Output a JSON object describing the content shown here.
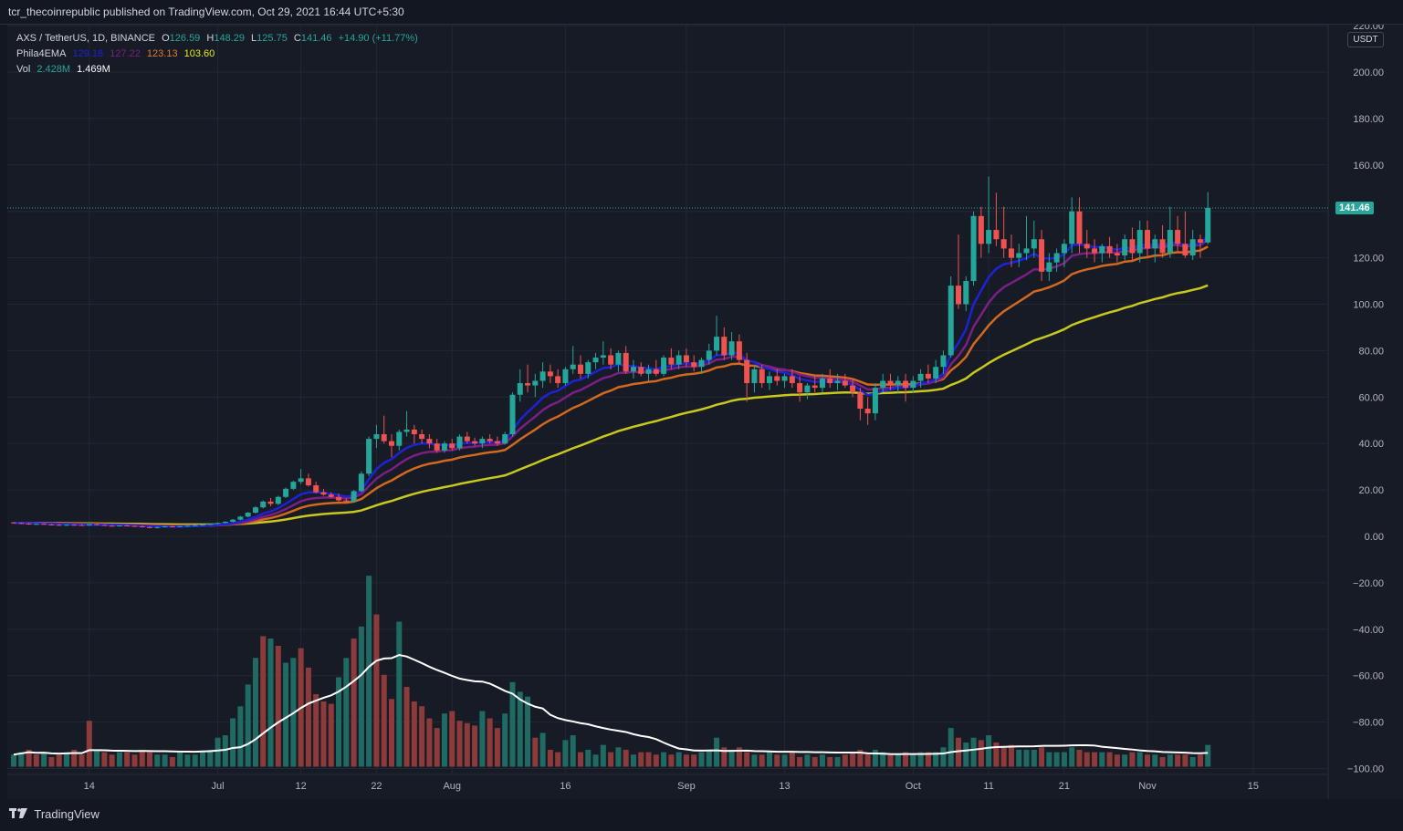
{
  "header": {
    "publisher_text": "tcr_thecoinrepublic published on TradingView.com, Oct 29, 2021 16:44 UTC+5:30"
  },
  "legend": {
    "symbol": "AXS / TetherUS, 1D, BINANCE",
    "open_label": "O",
    "open_value": "126.59",
    "high_label": "H",
    "high_value": "148.29",
    "low_label": "L",
    "low_value": "125.75",
    "close_label": "C",
    "close_value": "141.46",
    "change_value": "+14.90 (+11.77%)",
    "ema_name": "Phila4EMA",
    "ema_values": [
      "129.18",
      "127.22",
      "123.13",
      "103.60"
    ],
    "vol_name": "Vol",
    "vol_values": [
      "2.428M",
      "1.469M"
    ]
  },
  "price_axis": {
    "unit": "USDT",
    "current_price": "141.46"
  },
  "footer": {
    "brand": "TradingView"
  },
  "colors": {
    "up": "#26a69a",
    "down": "#ef5350",
    "ema_blue": "#1e22d6",
    "ema_purple": "#7b1f86",
    "ema_orange": "#d2691e",
    "ema_yellow": "#c8c81e",
    "vol_ma": "#ffffff"
  },
  "chart_data": {
    "type": "candlestick",
    "title": "AXS / TetherUS, 1D, BINANCE",
    "ylim": [
      -100,
      220
    ],
    "yticks": [
      "220.00",
      "200.00",
      "180.00",
      "160.00",
      "140.00",
      "120.00",
      "100.00",
      "80.00",
      "60.00",
      "40.00",
      "20.00",
      "0.00",
      "−20.00",
      "−40.00",
      "−60.00",
      "−80.00",
      "−100.00"
    ],
    "xticks": [
      {
        "label": "14",
        "index": 10
      },
      {
        "label": "Jul",
        "index": 27
      },
      {
        "label": "12",
        "index": 38
      },
      {
        "label": "22",
        "index": 48
      },
      {
        "label": "Aug",
        "index": 58
      },
      {
        "label": "16",
        "index": 73
      },
      {
        "label": "Sep",
        "index": 89
      },
      {
        "label": "13",
        "index": 102
      },
      {
        "label": "Oct",
        "index": 119
      },
      {
        "label": "11",
        "index": 129
      },
      {
        "label": "21",
        "index": 139
      },
      {
        "label": "Nov",
        "index": 150
      },
      {
        "label": "15",
        "index": 164
      }
    ],
    "candles": [
      [
        6,
        6.2,
        5.5,
        5.8
      ],
      [
        5.8,
        6.0,
        5.3,
        5.5
      ],
      [
        5.5,
        5.8,
        5.0,
        5.2
      ],
      [
        5.2,
        5.6,
        4.9,
        5.4
      ],
      [
        5.4,
        5.7,
        5.0,
        5.1
      ],
      [
        5.1,
        5.4,
        4.8,
        5.0
      ],
      [
        5.0,
        5.3,
        4.6,
        4.8
      ],
      [
        4.8,
        5.2,
        4.5,
        5.0
      ],
      [
        5.0,
        5.3,
        4.7,
        4.9
      ],
      [
        4.9,
        5.2,
        4.5,
        4.7
      ],
      [
        4.7,
        5.4,
        4.5,
        5.2
      ],
      [
        5.2,
        5.5,
        4.8,
        4.9
      ],
      [
        4.9,
        5.1,
        4.5,
        4.6
      ],
      [
        4.6,
        4.9,
        4.3,
        4.5
      ],
      [
        4.5,
        4.8,
        4.2,
        4.7
      ],
      [
        4.7,
        5.0,
        4.4,
        4.5
      ],
      [
        4.5,
        4.7,
        4.2,
        4.3
      ],
      [
        4.3,
        4.6,
        3.8,
        4.0
      ],
      [
        4.0,
        4.3,
        3.5,
        3.7
      ],
      [
        3.7,
        4.2,
        3.4,
        4.0
      ],
      [
        4.0,
        4.5,
        3.8,
        4.3
      ],
      [
        4.3,
        4.6,
        3.9,
        4.1
      ],
      [
        4.1,
        4.5,
        3.9,
        4.4
      ],
      [
        4.4,
        4.8,
        4.2,
        4.6
      ],
      [
        4.6,
        5.0,
        4.3,
        4.8
      ],
      [
        4.8,
        5.2,
        4.5,
        5.0
      ],
      [
        5.0,
        5.6,
        4.8,
        5.4
      ],
      [
        5.4,
        6.0,
        5.1,
        5.8
      ],
      [
        5.8,
        6.5,
        5.5,
        6.3
      ],
      [
        6.3,
        7.5,
        6.0,
        7.2
      ],
      [
        7.2,
        8.8,
        6.9,
        8.5
      ],
      [
        8.5,
        10.5,
        8.2,
        10.2
      ],
      [
        10.2,
        13.0,
        9.8,
        12.5
      ],
      [
        12.5,
        15.5,
        12.0,
        15.0
      ],
      [
        15.0,
        16.5,
        13.0,
        14.0
      ],
      [
        14.0,
        17.5,
        13.5,
        17.0
      ],
      [
        17.0,
        21.0,
        16.5,
        20.5
      ],
      [
        20.5,
        24.0,
        20.0,
        23.5
      ],
      [
        23.5,
        29.0,
        22.5,
        25.0
      ],
      [
        25.0,
        27.0,
        21.5,
        22.0
      ],
      [
        22.0,
        23.5,
        18.5,
        19.0
      ],
      [
        19.0,
        20.5,
        17.5,
        18.0
      ],
      [
        18.0,
        19.0,
        16.5,
        17.0
      ],
      [
        17.0,
        18.5,
        15.0,
        15.5
      ],
      [
        15.5,
        16.5,
        14.0,
        15.0
      ],
      [
        15.0,
        20.0,
        14.5,
        19.5
      ],
      [
        19.5,
        28.0,
        19.0,
        27.0
      ],
      [
        27.0,
        43.0,
        26.0,
        42.0
      ],
      [
        42.0,
        48.0,
        38.0,
        44.0
      ],
      [
        44.0,
        52.0,
        40.0,
        41.0
      ],
      [
        41.0,
        44.0,
        34.0,
        39.0
      ],
      [
        39.0,
        46.0,
        37.0,
        45.0
      ],
      [
        45.0,
        54.0,
        43.0,
        46.0
      ],
      [
        46.0,
        48.0,
        40.0,
        44.0
      ],
      [
        44.0,
        46.0,
        40.0,
        42.0
      ],
      [
        42.0,
        44.0,
        38.0,
        40.0
      ],
      [
        40.0,
        42.0,
        36.0,
        37.0
      ],
      [
        37.0,
        41.0,
        36.0,
        40.0
      ],
      [
        40.0,
        42.0,
        37.0,
        38.0
      ],
      [
        38.0,
        44.0,
        37.0,
        43.0
      ],
      [
        43.0,
        45.0,
        40.0,
        41.0
      ],
      [
        41.0,
        42.5,
        39.0,
        40.0
      ],
      [
        40.0,
        43.0,
        38.0,
        42.0
      ],
      [
        42.0,
        44.0,
        40.0,
        41.0
      ],
      [
        41.0,
        43.0,
        39.0,
        40.0
      ],
      [
        40.0,
        45.0,
        39.5,
        44.0
      ],
      [
        44.0,
        62.0,
        43.0,
        61.0
      ],
      [
        61.0,
        72.0,
        58.0,
        66.0
      ],
      [
        66.0,
        74.0,
        62.0,
        65.0
      ],
      [
        65.0,
        70.0,
        60.0,
        67.0
      ],
      [
        67.0,
        75.0,
        64.0,
        71.0
      ],
      [
        71.0,
        74.0,
        66.0,
        69.0
      ],
      [
        69.0,
        72.0,
        64.0,
        66.0
      ],
      [
        66.0,
        73.0,
        65.0,
        72.0
      ],
      [
        72.0,
        82.0,
        70.0,
        74.0
      ],
      [
        74.0,
        78.0,
        68.0,
        70.0
      ],
      [
        70.0,
        76.0,
        68.0,
        75.0
      ],
      [
        75.0,
        79.0,
        72.0,
        77.0
      ],
      [
        77.0,
        84.0,
        74.0,
        78.0
      ],
      [
        78.0,
        81.0,
        72.0,
        74.0
      ],
      [
        74.0,
        80.0,
        71.0,
        79.0
      ],
      [
        79.0,
        82.0,
        70.0,
        71.0
      ],
      [
        71.0,
        76.0,
        68.0,
        73.0
      ],
      [
        73.0,
        75.0,
        69.0,
        70.0
      ],
      [
        70.0,
        74.0,
        67.0,
        72.0
      ],
      [
        72.0,
        76.0,
        69.0,
        70.0
      ],
      [
        70.0,
        78.0,
        69.0,
        77.0
      ],
      [
        77.0,
        81.0,
        72.0,
        74.0
      ],
      [
        74.0,
        80.0,
        72.0,
        78.0
      ],
      [
        78.0,
        81.0,
        73.0,
        75.0
      ],
      [
        75.0,
        78.0,
        71.0,
        73.0
      ],
      [
        73.0,
        77.0,
        70.0,
        76.0
      ],
      [
        76.0,
        83.0,
        74.0,
        80.0
      ],
      [
        80.0,
        95.0,
        78.0,
        86.0
      ],
      [
        86.0,
        90.0,
        76.0,
        78.0
      ],
      [
        78.0,
        88.0,
        76.0,
        84.0
      ],
      [
        84.0,
        87.0,
        74.0,
        76.0
      ],
      [
        76.0,
        79.0,
        58.0,
        66.0
      ],
      [
        66.0,
        74.0,
        62.0,
        72.0
      ],
      [
        72.0,
        74.0,
        64.0,
        66.0
      ],
      [
        66.0,
        71.0,
        63.0,
        69.0
      ],
      [
        69.0,
        72.0,
        65.0,
        67.0
      ],
      [
        67.0,
        70.0,
        64.0,
        69.0
      ],
      [
        69.0,
        72.0,
        64.0,
        66.0
      ],
      [
        66.0,
        69.0,
        58.0,
        62.0
      ],
      [
        62.0,
        66.0,
        59.0,
        65.0
      ],
      [
        65.0,
        69.0,
        62.0,
        64.0
      ],
      [
        64.0,
        70.0,
        62.0,
        68.0
      ],
      [
        68.0,
        72.0,
        64.0,
        66.0
      ],
      [
        66.0,
        70.0,
        63.0,
        67.0
      ],
      [
        67.0,
        70.0,
        64.0,
        65.0
      ],
      [
        65.0,
        68.0,
        60.0,
        62.0
      ],
      [
        62.0,
        64.0,
        50.0,
        55.0
      ],
      [
        55.0,
        60.0,
        48.0,
        53.0
      ],
      [
        53.0,
        66.0,
        50.0,
        64.0
      ],
      [
        64.0,
        70.0,
        62.0,
        67.0
      ],
      [
        67.0,
        70.0,
        63.0,
        65.0
      ],
      [
        65.0,
        69.0,
        62.0,
        67.0
      ],
      [
        67.0,
        70.0,
        58.0,
        64.0
      ],
      [
        64.0,
        69.0,
        62.0,
        67.0
      ],
      [
        67.0,
        72.0,
        64.0,
        70.0
      ],
      [
        70.0,
        74.0,
        66.0,
        68.0
      ],
      [
        68.0,
        76.0,
        66.0,
        73.0
      ],
      [
        73.0,
        80.0,
        70.0,
        78.0
      ],
      [
        78.0,
        112.0,
        77.0,
        108.0
      ],
      [
        108.0,
        130.0,
        98.0,
        100.0
      ],
      [
        100.0,
        112.0,
        97.0,
        110.0
      ],
      [
        110.0,
        140.0,
        108.0,
        138.0
      ],
      [
        138.0,
        142.0,
        120.0,
        126.0
      ],
      [
        126.0,
        155.0,
        122.0,
        132.0
      ],
      [
        132.0,
        148.0,
        125.0,
        128.0
      ],
      [
        128.0,
        142.0,
        120.0,
        124.0
      ],
      [
        124.0,
        130.0,
        116.0,
        120.0
      ],
      [
        120.0,
        126.0,
        116.0,
        122.0
      ],
      [
        122.0,
        138.0,
        119.0,
        124.0
      ],
      [
        124.0,
        136.0,
        120.0,
        128.0
      ],
      [
        128.0,
        132.0,
        110.0,
        114.0
      ],
      [
        114.0,
        122.0,
        110.0,
        118.0
      ],
      [
        118.0,
        124.0,
        114.0,
        122.0
      ],
      [
        122.0,
        128.0,
        116.0,
        126.0
      ],
      [
        126.0,
        146.0,
        122.0,
        140.0
      ],
      [
        140.0,
        146.0,
        122.0,
        126.0
      ],
      [
        126.0,
        132.0,
        120.0,
        124.0
      ],
      [
        124.0,
        128.0,
        118.0,
        122.0
      ],
      [
        122.0,
        126.0,
        118.0,
        125.0
      ],
      [
        125.0,
        129.0,
        120.0,
        122.0
      ],
      [
        122.0,
        126.0,
        118.0,
        121.0
      ],
      [
        121.0,
        130.0,
        119.0,
        128.0
      ],
      [
        128.0,
        133.0,
        119.0,
        122.0
      ],
      [
        122.0,
        136.0,
        118.0,
        132.0
      ],
      [
        132.0,
        136.0,
        120.0,
        124.0
      ],
      [
        124.0,
        130.0,
        118.0,
        128.0
      ],
      [
        128.0,
        134.0,
        120.0,
        122.0
      ],
      [
        122.0,
        142.0,
        120.0,
        132.0
      ],
      [
        132.0,
        138.0,
        122.0,
        126.0
      ],
      [
        126.0,
        140.0,
        120.0,
        121.0
      ],
      [
        121.0,
        132.0,
        119.0,
        128.0
      ],
      [
        128.0,
        130.0,
        120.0,
        126.5
      ],
      [
        126.6,
        148.3,
        125.8,
        141.5
      ]
    ],
    "volume": [
      [
        5,
        0
      ],
      [
        6,
        0
      ],
      [
        7,
        1
      ],
      [
        5,
        1
      ],
      [
        6,
        0
      ],
      [
        4,
        1
      ],
      [
        5,
        1
      ],
      [
        6,
        0
      ],
      [
        7,
        1
      ],
      [
        5,
        1
      ],
      [
        19,
        1
      ],
      [
        7,
        0
      ],
      [
        6,
        1
      ],
      [
        5,
        1
      ],
      [
        6,
        0
      ],
      [
        6,
        1
      ],
      [
        5,
        1
      ],
      [
        7,
        1
      ],
      [
        6,
        1
      ],
      [
        5,
        0
      ],
      [
        5,
        0
      ],
      [
        4,
        1
      ],
      [
        6,
        0
      ],
      [
        5,
        0
      ],
      [
        5,
        0
      ],
      [
        6,
        0
      ],
      [
        7,
        0
      ],
      [
        12,
        0
      ],
      [
        13,
        0
      ],
      [
        20,
        0
      ],
      [
        25,
        0
      ],
      [
        34,
        0
      ],
      [
        45,
        0
      ],
      [
        54,
        1
      ],
      [
        53,
        0
      ],
      [
        50,
        1
      ],
      [
        43,
        0
      ],
      [
        45,
        0
      ],
      [
        49,
        1
      ],
      [
        41,
        1
      ],
      [
        30,
        1
      ],
      [
        27,
        1
      ],
      [
        26,
        1
      ],
      [
        37,
        0
      ],
      [
        45,
        0
      ],
      [
        53,
        1
      ],
      [
        58,
        0
      ],
      [
        79,
        0
      ],
      [
        63,
        1
      ],
      [
        38,
        1
      ],
      [
        28,
        1
      ],
      [
        60,
        0
      ],
      [
        33,
        1
      ],
      [
        27,
        1
      ],
      [
        25,
        1
      ],
      [
        20,
        1
      ],
      [
        16,
        1
      ],
      [
        22,
        0
      ],
      [
        23,
        1
      ],
      [
        19,
        1
      ],
      [
        18,
        1
      ],
      [
        17,
        1
      ],
      [
        23,
        0
      ],
      [
        20,
        1
      ],
      [
        16,
        1
      ],
      [
        22,
        0
      ],
      [
        35,
        0
      ],
      [
        31,
        0
      ],
      [
        29,
        0
      ],
      [
        12,
        1
      ],
      [
        14,
        0
      ],
      [
        7,
        1
      ],
      [
        6,
        1
      ],
      [
        11,
        0
      ],
      [
        13,
        0
      ],
      [
        6,
        1
      ],
      [
        7,
        0
      ],
      [
        5,
        0
      ],
      [
        9,
        0
      ],
      [
        6,
        1
      ],
      [
        8,
        0
      ],
      [
        7,
        1
      ],
      [
        5,
        0
      ],
      [
        6,
        1
      ],
      [
        6,
        1
      ],
      [
        5,
        1
      ],
      [
        6,
        0
      ],
      [
        5,
        1
      ],
      [
        6,
        0
      ],
      [
        5,
        1
      ],
      [
        5,
        1
      ],
      [
        6,
        0
      ],
      [
        7,
        0
      ],
      [
        12,
        0
      ],
      [
        8,
        1
      ],
      [
        7,
        0
      ],
      [
        8,
        1
      ],
      [
        6,
        1
      ],
      [
        5,
        0
      ],
      [
        5,
        1
      ],
      [
        6,
        0
      ],
      [
        5,
        1
      ],
      [
        5,
        0
      ],
      [
        6,
        1
      ],
      [
        4,
        1
      ],
      [
        5,
        0
      ],
      [
        4,
        1
      ],
      [
        5,
        0
      ],
      [
        4,
        1
      ],
      [
        4,
        0
      ],
      [
        5,
        1
      ],
      [
        6,
        1
      ],
      [
        7,
        1
      ],
      [
        5,
        1
      ],
      [
        7,
        0
      ],
      [
        6,
        0
      ],
      [
        5,
        1
      ],
      [
        5,
        0
      ],
      [
        6,
        1
      ],
      [
        5,
        0
      ],
      [
        6,
        0
      ],
      [
        6,
        1
      ],
      [
        6,
        0
      ],
      [
        8,
        0
      ],
      [
        16,
        0
      ],
      [
        12,
        1
      ],
      [
        10,
        0
      ],
      [
        12,
        0
      ],
      [
        11,
        1
      ],
      [
        13,
        0
      ],
      [
        10,
        1
      ],
      [
        8,
        1
      ],
      [
        9,
        1
      ],
      [
        7,
        0
      ],
      [
        7,
        0
      ],
      [
        7,
        0
      ],
      [
        8,
        1
      ],
      [
        6,
        0
      ],
      [
        6,
        0
      ],
      [
        6,
        0
      ],
      [
        8,
        0
      ],
      [
        7,
        1
      ],
      [
        6,
        1
      ],
      [
        6,
        1
      ],
      [
        6,
        0
      ],
      [
        6,
        1
      ],
      [
        5,
        1
      ],
      [
        5,
        0
      ],
      [
        6,
        1
      ],
      [
        6,
        0
      ],
      [
        5,
        1
      ],
      [
        5,
        0
      ],
      [
        4,
        1
      ],
      [
        5,
        0
      ],
      [
        5,
        1
      ],
      [
        5,
        1
      ],
      [
        4,
        0
      ],
      [
        5,
        1
      ],
      [
        9,
        0
      ]
    ]
  }
}
